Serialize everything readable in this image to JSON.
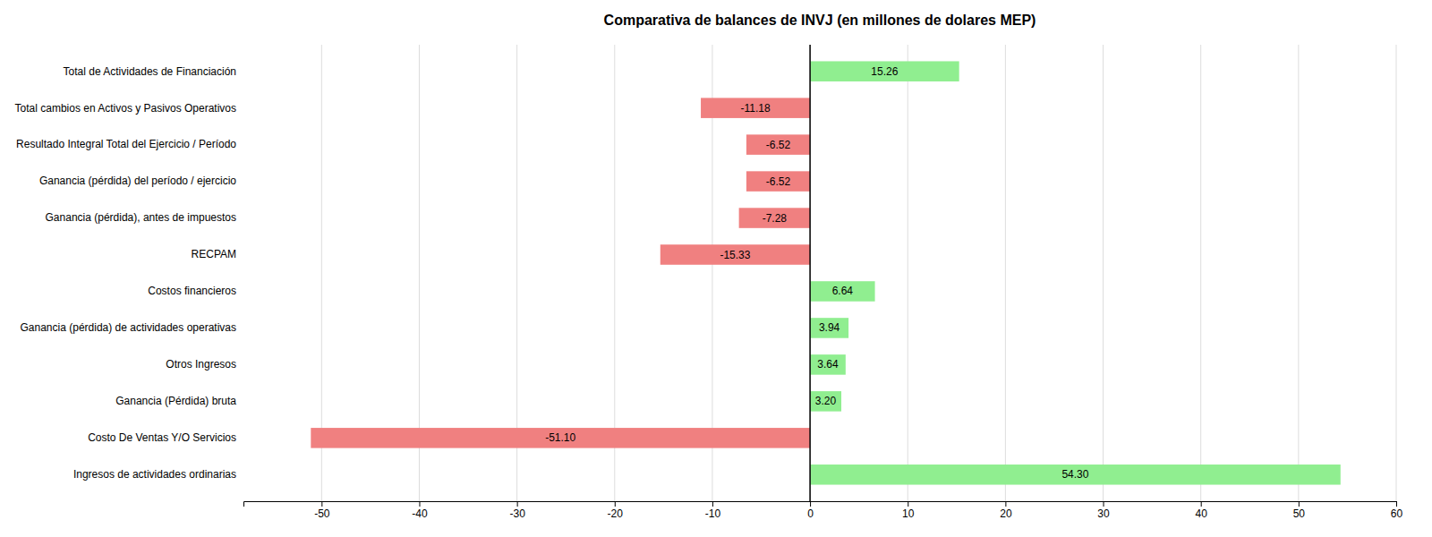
{
  "chart_data": {
    "type": "bar",
    "orientation": "horizontal",
    "title": "Comparativa de balances de INVJ (en millones de dolares MEP)",
    "categories": [
      "Total de Actividades de Financiación",
      "Total cambios en Activos y Pasivos Operativos",
      "Resultado Integral Total del Ejercicio / Período",
      "Ganancia (pérdida)  del período / ejercicio",
      "Ganancia (pérdida), antes de impuestos",
      "RECPAM",
      "Costos financieros",
      "Ganancia (pérdida) de actividades operativas",
      "Otros Ingresos",
      "Ganancia (Pérdida) bruta",
      "Costo De Ventas Y/O Servicios",
      "Ingresos de actividades ordinarias"
    ],
    "values": [
      15.26,
      -11.18,
      -6.52,
      -6.52,
      -7.28,
      -15.33,
      6.64,
      3.94,
      3.64,
      3.2,
      -51.1,
      54.3
    ],
    "value_labels": [
      "15.26",
      "-11.18",
      "-6.52",
      "-6.52",
      "-7.28",
      "-15.33",
      "6.64",
      "3.94",
      "3.64",
      "3.20",
      "-51.10",
      "54.30"
    ],
    "colors": [
      "#90EE90",
      "#F08080",
      "#F08080",
      "#F08080",
      "#F08080",
      "#F08080",
      "#90EE90",
      "#90EE90",
      "#90EE90",
      "#90EE90",
      "#F08080",
      "#90EE90"
    ],
    "xlim": [
      -58,
      60
    ],
    "xticks": [
      -50,
      -40,
      -30,
      -20,
      -10,
      0,
      10,
      20,
      30,
      40,
      50,
      60
    ],
    "grid": true,
    "data_labels": true
  }
}
